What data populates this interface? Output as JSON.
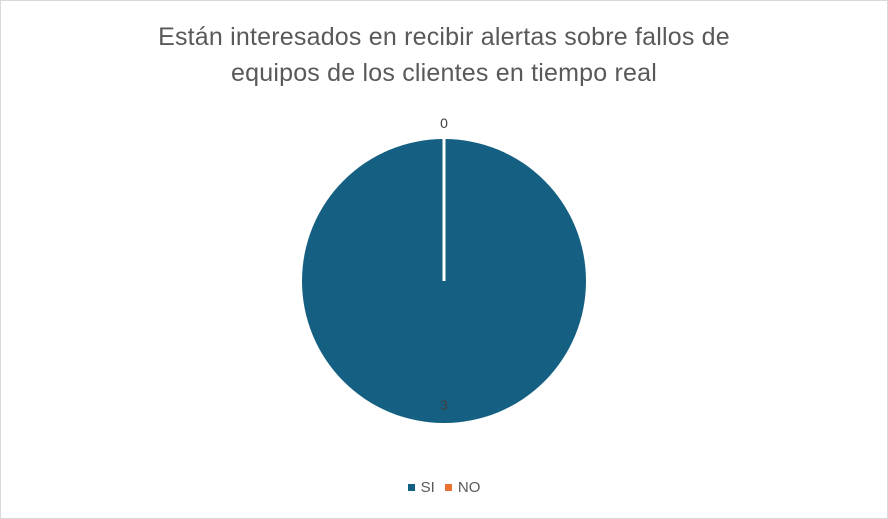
{
  "chart_data": {
    "type": "pie",
    "title_lines": [
      "Están interesados en recibir alertas sobre fallos de",
      "equipos de los clientes en tiempo real"
    ],
    "categories": [
      "SI",
      "NO"
    ],
    "values": [
      3,
      0
    ],
    "colors": [
      "#156082",
      "#E97132"
    ],
    "data_labels": [
      "3",
      "0"
    ],
    "legend_position": "bottom"
  }
}
